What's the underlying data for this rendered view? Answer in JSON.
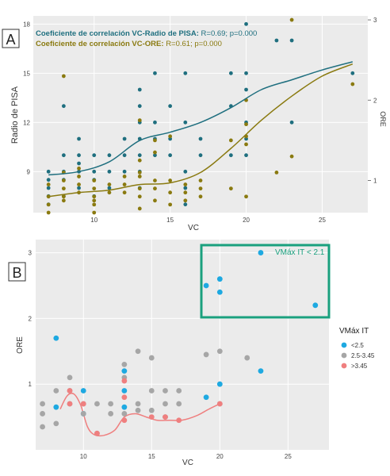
{
  "colors": {
    "teal": "#1f6f7f",
    "olive": "#8a7a10",
    "blue": "#1ea9e1",
    "grey": "#a6a6a6",
    "red": "#ef7f7f",
    "box": "#1aa07e",
    "panel": "#ebebeb",
    "grid": "#ffffff"
  },
  "chart_data": [
    {
      "type": "scatter",
      "panel_label": "A",
      "xlabel": "VC",
      "ylabel": "Radio de PISA",
      "y2label": "ORE",
      "xlim": [
        6,
        28
      ],
      "ylim": [
        6.5,
        18.5
      ],
      "y2lim": [
        0.6,
        3.05
      ],
      "xticks": [
        "10",
        "15",
        "20",
        "25"
      ],
      "yticks": [
        "9",
        "12",
        "15",
        "18"
      ],
      "y2ticks": [
        "1",
        "2",
        "3"
      ],
      "grid": true,
      "annotations": [
        {
          "prefix": "Coeficiente de correlación VC-Radio de PISA: ",
          "stats": "R=0.69; p=0.000"
        },
        {
          "prefix": "Coeficiente de correlación VC-ORE: ",
          "stats": "R=0.61; p=0.000"
        }
      ],
      "series": [
        {
          "axis": "left",
          "points": [
            [
              7,
              9
            ],
            [
              7,
              8.5
            ],
            [
              7,
              8
            ],
            [
              7,
              7.5
            ],
            [
              7,
              7
            ],
            [
              8,
              13
            ],
            [
              8,
              10
            ],
            [
              8,
              9
            ],
            [
              8,
              8.5
            ],
            [
              8,
              7.5
            ],
            [
              9,
              11
            ],
            [
              9,
              10
            ],
            [
              9,
              9.5
            ],
            [
              9,
              9
            ],
            [
              9,
              8
            ],
            [
              10,
              10
            ],
            [
              10,
              9
            ],
            [
              10,
              8.5
            ],
            [
              10,
              7.5
            ],
            [
              11,
              10
            ],
            [
              11,
              9
            ],
            [
              11,
              8
            ],
            [
              12,
              11
            ],
            [
              12,
              10
            ],
            [
              12,
              9
            ],
            [
              13,
              14
            ],
            [
              13,
              13
            ],
            [
              13,
              12
            ],
            [
              13,
              11
            ],
            [
              13,
              10
            ],
            [
              13,
              9
            ],
            [
              13,
              8
            ],
            [
              14,
              15
            ],
            [
              14,
              12
            ],
            [
              14,
              11
            ],
            [
              14,
              10
            ],
            [
              15,
              13
            ],
            [
              15,
              11
            ],
            [
              15,
              10
            ],
            [
              16,
              15
            ],
            [
              16,
              12
            ],
            [
              16,
              9
            ],
            [
              16,
              8
            ],
            [
              16,
              7
            ],
            [
              17,
              11
            ],
            [
              17,
              10
            ],
            [
              19,
              15
            ],
            [
              19,
              13
            ],
            [
              19,
              10
            ],
            [
              20,
              18
            ],
            [
              20,
              15
            ],
            [
              20,
              14
            ],
            [
              20,
              12
            ],
            [
              20,
              11
            ],
            [
              20,
              10
            ],
            [
              22,
              17
            ],
            [
              23,
              17
            ],
            [
              23,
              12
            ],
            [
              27,
              15
            ]
          ],
          "trend": [
            [
              7,
              8.8
            ],
            [
              9,
              9.0
            ],
            [
              11,
              9.6
            ],
            [
              13,
              10.9
            ],
            [
              15,
              11.4
            ],
            [
              17,
              12.0
            ],
            [
              19,
              12.9
            ],
            [
              21,
              14.0
            ],
            [
              23,
              14.6
            ],
            [
              25,
              15.2
            ],
            [
              27,
              15.7
            ]
          ]
        },
        {
          "axis": "right",
          "points": [
            [
              7,
              0.95
            ],
            [
              7,
              0.8
            ],
            [
              7,
              0.7
            ],
            [
              7,
              0.6
            ],
            [
              8,
              1.1
            ],
            [
              8,
              2.3
            ],
            [
              8,
              1.0
            ],
            [
              8,
              0.9
            ],
            [
              8,
              0.8
            ],
            [
              8,
              0.75
            ],
            [
              9,
              1.15
            ],
            [
              9,
              1.05
            ],
            [
              9,
              0.95
            ],
            [
              9,
              0.85
            ],
            [
              10,
              1.0
            ],
            [
              10,
              0.9
            ],
            [
              10,
              0.8
            ],
            [
              10,
              0.75
            ],
            [
              10,
              0.7
            ],
            [
              10,
              0.6
            ],
            [
              11,
              0.95
            ],
            [
              11,
              0.85
            ],
            [
              12,
              1.05
            ],
            [
              12,
              0.95
            ],
            [
              12,
              0.85
            ],
            [
              13,
              1.75
            ],
            [
              13,
              1.25
            ],
            [
              13,
              1.1
            ],
            [
              13,
              1.05
            ],
            [
              13,
              0.9
            ],
            [
              13,
              0.8
            ],
            [
              13,
              0.65
            ],
            [
              14,
              1.5
            ],
            [
              14,
              1.35
            ],
            [
              14,
              1.0
            ],
            [
              14,
              0.9
            ],
            [
              14,
              0.75
            ],
            [
              15,
              1.55
            ],
            [
              15,
              1.0
            ],
            [
              15,
              0.85
            ],
            [
              15,
              0.7
            ],
            [
              16,
              0.95
            ],
            [
              16,
              0.85
            ],
            [
              16,
              0.75
            ],
            [
              17,
              1.0
            ],
            [
              17,
              0.9
            ],
            [
              17,
              0.8
            ],
            [
              19,
              1.5
            ],
            [
              19,
              0.9
            ],
            [
              20,
              2.0
            ],
            [
              20,
              1.7
            ],
            [
              20,
              1.55
            ],
            [
              20,
              1.45
            ],
            [
              20,
              0.8
            ],
            [
              22,
              1.1
            ],
            [
              23,
              3.0
            ],
            [
              23,
              1.3
            ],
            [
              27,
              2.2
            ]
          ],
          "trend": [
            [
              7,
              0.8
            ],
            [
              9,
              0.85
            ],
            [
              11,
              0.88
            ],
            [
              13,
              0.95
            ],
            [
              15,
              0.97
            ],
            [
              17,
              1.1
            ],
            [
              19,
              1.4
            ],
            [
              21,
              1.75
            ],
            [
              23,
              2.05
            ],
            [
              25,
              2.3
            ],
            [
              27,
              2.45
            ]
          ]
        }
      ]
    },
    {
      "type": "scatter",
      "panel_label": "B",
      "xlabel": "VC",
      "ylabel": "ORE",
      "xlim": [
        6.5,
        28
      ],
      "ylim": [
        0,
        3.2
      ],
      "xticks": [
        "10",
        "15",
        "20",
        "25"
      ],
      "yticks": [
        "1",
        "2",
        "3"
      ],
      "grid": true,
      "box_label": "VMáx IT < 2.1",
      "box_region": {
        "x": [
          18.5,
          28
        ],
        "y": [
          2.05,
          3.2
        ]
      },
      "legend_title": "VMáx IT",
      "legend_position": "right",
      "series": [
        {
          "name": "<2.5",
          "color_key": "blue",
          "points": [
            [
              8,
              1.7
            ],
            [
              8,
              0.65
            ],
            [
              10,
              0.9
            ],
            [
              10,
              0.55
            ],
            [
              13,
              1.2
            ],
            [
              13,
              0.9
            ],
            [
              13,
              0.65
            ],
            [
              19,
              0.8
            ],
            [
              20,
              1.0
            ],
            [
              23,
              1.2
            ],
            [
              19,
              2.5
            ],
            [
              20,
              2.6
            ],
            [
              20,
              2.4
            ],
            [
              23,
              3.0
            ],
            [
              27,
              2.2
            ]
          ]
        },
        {
          "name": "2.5-3.45",
          "color_key": "grey",
          "points": [
            [
              7,
              0.7
            ],
            [
              7,
              0.55
            ],
            [
              7,
              0.35
            ],
            [
              8,
              0.9
            ],
            [
              8,
              0.4
            ],
            [
              9,
              1.1
            ],
            [
              9,
              0.9
            ],
            [
              9,
              0.7
            ],
            [
              10,
              0.7
            ],
            [
              10,
              0.55
            ],
            [
              11,
              0.7
            ],
            [
              11,
              0.25
            ],
            [
              12,
              0.7
            ],
            [
              12,
              0.55
            ],
            [
              13,
              1.3
            ],
            [
              13,
              1.1
            ],
            [
              13,
              0.55
            ],
            [
              14,
              1.5
            ],
            [
              14,
              0.7
            ],
            [
              14,
              0.6
            ],
            [
              15,
              1.4
            ],
            [
              15,
              0.9
            ],
            [
              15,
              0.6
            ],
            [
              16,
              0.9
            ],
            [
              16,
              0.7
            ],
            [
              16,
              0.5
            ],
            [
              17,
              0.9
            ],
            [
              17,
              0.7
            ],
            [
              19,
              1.45
            ],
            [
              20,
              1.5
            ],
            [
              22,
              1.4
            ],
            [
              20,
              0.7
            ]
          ]
        },
        {
          "name": ">3.45",
          "color_key": "red",
          "points": [
            [
              9,
              0.9
            ],
            [
              9,
              0.7
            ],
            [
              10,
              0.7
            ],
            [
              11,
              0.25
            ],
            [
              13,
              1.05
            ],
            [
              13,
              0.8
            ],
            [
              13,
              0.45
            ],
            [
              15,
              0.5
            ],
            [
              16,
              0.5
            ],
            [
              17,
              0.45
            ],
            [
              20,
              0.7
            ]
          ],
          "trend": [
            [
              8.3,
              0.62
            ],
            [
              8.8,
              0.82
            ],
            [
              9.3,
              0.85
            ],
            [
              9.8,
              0.68
            ],
            [
              10.3,
              0.35
            ],
            [
              10.8,
              0.23
            ],
            [
              11.5,
              0.22
            ],
            [
              12.3,
              0.3
            ],
            [
              13,
              0.5
            ],
            [
              13.8,
              0.55
            ],
            [
              14.6,
              0.5
            ],
            [
              15.4,
              0.45
            ],
            [
              16.3,
              0.45
            ],
            [
              17.2,
              0.45
            ],
            [
              18.3,
              0.52
            ],
            [
              19.2,
              0.62
            ],
            [
              20,
              0.7
            ]
          ]
        }
      ]
    }
  ]
}
